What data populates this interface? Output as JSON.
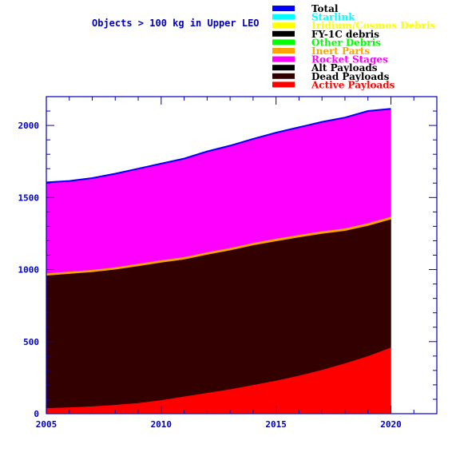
{
  "chart_data": {
    "type": "area",
    "title": "Objects > 100 kg in Upper LEO",
    "xlabel": "",
    "ylabel": "",
    "xlim": [
      2005,
      2022
    ],
    "ylim": [
      0,
      2200
    ],
    "x_ticks": [
      2005,
      2010,
      2015,
      2020
    ],
    "y_ticks": [
      0,
      500,
      1000,
      1500,
      2000
    ],
    "x": [
      2005,
      2006,
      2007,
      2008,
      2009,
      2010,
      2011,
      2012,
      2013,
      2014,
      2015,
      2016,
      2017,
      2018,
      2019,
      2020
    ],
    "stacking_order": [
      "Active Payloads",
      "Dead Payloads",
      "Alt Payloads",
      "FY-1C debris",
      "Other Debris",
      "Inert Parts",
      "Rocket Stages",
      "Iridium/Cosmos Debris",
      "Starlink",
      "Total"
    ],
    "series": [
      {
        "name": "Active Payloads",
        "color": "#ff0000",
        "values": [
          40,
          45,
          52,
          62,
          75,
          95,
          120,
          145,
          170,
          200,
          230,
          265,
          305,
          350,
          400,
          460
        ]
      },
      {
        "name": "Dead Payloads",
        "color": "#330000",
        "values": [
          920,
          927,
          932,
          940,
          950,
          955,
          952,
          960,
          965,
          970,
          968,
          960,
          945,
          920,
          905,
          890
        ]
      },
      {
        "name": "Alt Payloads",
        "color": "#000000",
        "values": [
          0,
          0,
          0,
          0,
          0,
          0,
          0,
          0,
          0,
          0,
          0,
          0,
          0,
          0,
          0,
          0
        ]
      },
      {
        "name": "FY-1C debris",
        "color": "#000000",
        "values": [
          0,
          0,
          0,
          0,
          0,
          0,
          0,
          0,
          0,
          0,
          0,
          0,
          0,
          0,
          0,
          0
        ]
      },
      {
        "name": "Other Debris",
        "color": "#00ff00",
        "values": [
          0,
          0,
          0,
          0,
          0,
          0,
          0,
          0,
          0,
          0,
          0,
          0,
          0,
          0,
          0,
          0
        ]
      },
      {
        "name": "Inert Parts",
        "color": "#ffa500",
        "values": [
          15,
          15,
          15,
          15,
          16,
          16,
          16,
          16,
          16,
          16,
          17,
          17,
          17,
          17,
          18,
          18
        ]
      },
      {
        "name": "Rocket Stages",
        "color": "#ff00ff",
        "values": [
          625,
          628,
          636,
          648,
          659,
          669,
          682,
          699,
          709,
          721,
          735,
          745,
          758,
          768,
          777,
          742
        ]
      },
      {
        "name": "Iridium/Cosmos Debris",
        "color": "#ffff00",
        "values": [
          0,
          0,
          0,
          0,
          0,
          0,
          0,
          0,
          0,
          0,
          0,
          0,
          0,
          0,
          0,
          0
        ]
      },
      {
        "name": "Starlink",
        "color": "#00ffff",
        "values": [
          0,
          0,
          0,
          0,
          0,
          0,
          0,
          0,
          0,
          0,
          0,
          0,
          0,
          0,
          0,
          0
        ]
      }
    ],
    "total": {
      "name": "Total",
      "color": "#0000ff",
      "values": [
        1605,
        1615,
        1635,
        1665,
        1700,
        1735,
        1770,
        1820,
        1860,
        1907,
        1950,
        1987,
        2025,
        2055,
        2100,
        2115
      ]
    },
    "legend": [
      {
        "label": "Total",
        "color": "#0000ff",
        "text_color": "#000000"
      },
      {
        "label": "Starlink",
        "color": "#00ffff",
        "text_color": "#00ffff"
      },
      {
        "label": "Iridium/Cosmos Debris",
        "color": "#ffff00",
        "text_color": "#ffff00"
      },
      {
        "label": "FY-1C debris",
        "color": "#000000",
        "text_color": "#000000"
      },
      {
        "label": "Other Debris",
        "color": "#00ff00",
        "text_color": "#00ff00"
      },
      {
        "label": "Inert Parts",
        "color": "#ffa500",
        "text_color": "#ffa500"
      },
      {
        "label": "Rocket Stages",
        "color": "#ff00ff",
        "text_color": "#ff00ff"
      },
      {
        "label": "Alt Payloads",
        "color": "#000000",
        "text_color": "#000000"
      },
      {
        "label": "Dead Payloads",
        "color": "#330000",
        "text_color": "#000000"
      },
      {
        "label": "Active Payloads",
        "color": "#ff0000",
        "text_color": "#ff0000"
      }
    ],
    "legend_position": "top-right",
    "axis_color": "#0000c0",
    "grid": false
  }
}
